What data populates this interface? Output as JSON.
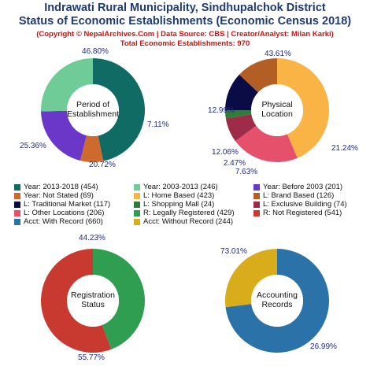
{
  "header": {
    "title_line1": "Indrawati Rural Municipality, Sindhupalchok District",
    "title_line2": "Status of Economic Establishments (Economic Census 2018)",
    "subtitle_line1": "(Copyright © NepalArchives.Com | Data Source: CBS | Creator/Analyst: Milan Karki)",
    "subtitle_line2": "Total Economic Establishments: 970"
  },
  "chart_data": [
    {
      "type": "pie",
      "title": "Period of\nEstablishment",
      "slices": [
        {
          "label": "Year: 2013-2018",
          "value": 454,
          "pct": "46.80%",
          "color": "#0f6b64"
        },
        {
          "label": "Year: Not Stated",
          "value": 69,
          "pct": "7.11%",
          "color": "#cf6a2f"
        },
        {
          "label": "Year: Before 2003",
          "value": 201,
          "pct": "20.72%",
          "color": "#6a37c8"
        },
        {
          "label": "Year: 2003-2013",
          "value": 246,
          "pct": "25.36%",
          "color": "#6fcc96"
        }
      ]
    },
    {
      "type": "pie",
      "title": "Physical\nLocation",
      "slices": [
        {
          "label": "L: Home Based",
          "value": 423,
          "pct": "43.61%",
          "color": "#f9b445"
        },
        {
          "label": "L: Other Locations",
          "value": 206,
          "pct": "21.24%",
          "color": "#e5506a"
        },
        {
          "label": "L: Exclusive Building",
          "value": 74,
          "pct": "7.63%",
          "color": "#9e2b48"
        },
        {
          "label": "L: Shopping Mall",
          "value": 24,
          "pct": "2.47%",
          "color": "#2e7d3a"
        },
        {
          "label": "L: Traditional Market",
          "value": 117,
          "pct": "12.06%",
          "color": "#0b0b45"
        },
        {
          "label": "L: Brand Based",
          "value": 126,
          "pct": "12.99%",
          "color": "#b25e24"
        }
      ]
    },
    {
      "type": "pie",
      "title": "Registration\nStatus",
      "slices": [
        {
          "label": "R: Legally Registered",
          "value": 429,
          "pct": "44.23%",
          "color": "#2f9e50"
        },
        {
          "label": "R: Not Registered",
          "value": 541,
          "pct": "55.77%",
          "color": "#c83a30"
        }
      ]
    },
    {
      "type": "pie",
      "title": "Accounting\nRecords",
      "slices": [
        {
          "label": "Acct: With Record",
          "value": 660,
          "pct": "73.01%",
          "color": "#2a72a7"
        },
        {
          "label": "Acct: Without Record",
          "value": 244,
          "pct": "26.99%",
          "color": "#d9ac1c"
        }
      ]
    }
  ],
  "legend": [
    {
      "text": "Year: 2013-2018 (454)",
      "color": "#0f6b64"
    },
    {
      "text": "Year: 2003-2013 (246)",
      "color": "#6fcc96"
    },
    {
      "text": "Year: Before 2003 (201)",
      "color": "#6a37c8"
    },
    {
      "text": "Year: Not Stated (69)",
      "color": "#cf6a2f"
    },
    {
      "text": "L: Home Based (423)",
      "color": "#f9b445"
    },
    {
      "text": "L: Brand Based (126)",
      "color": "#b25e24"
    },
    {
      "text": "L: Traditional Market (117)",
      "color": "#0b0b45"
    },
    {
      "text": "L: Shopping Mall (24)",
      "color": "#2e7d3a"
    },
    {
      "text": "L: Exclusive Building (74)",
      "color": "#9e2b48"
    },
    {
      "text": "L: Other Locations (206)",
      "color": "#e5506a"
    },
    {
      "text": "R: Legally Registered (429)",
      "color": "#2f9e50"
    },
    {
      "text": "R: Not Registered (541)",
      "color": "#c83a30"
    },
    {
      "text": "Acct: With Record (660)",
      "color": "#2a72a7"
    },
    {
      "text": "Acct: Without Record (244)",
      "color": "#d9ac1c"
    }
  ]
}
